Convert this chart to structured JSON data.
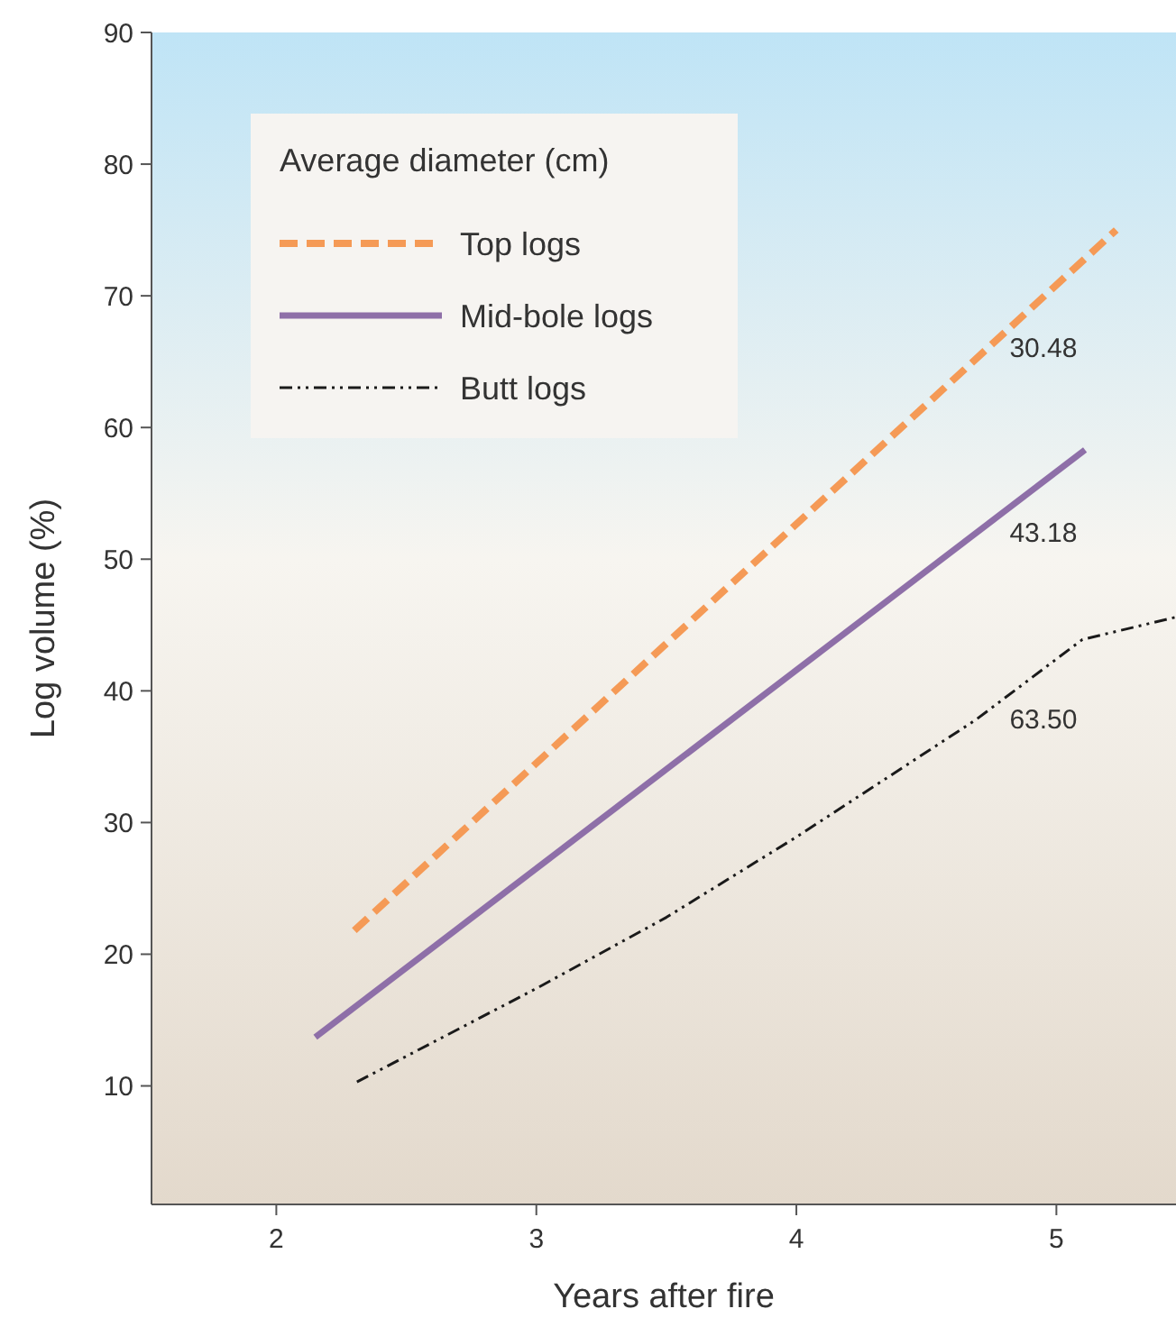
{
  "chart_data": {
    "type": "line",
    "xlabel": "Years after fire",
    "ylabel": "Log volume (%)",
    "legend_title": "Average diameter (cm)",
    "legend": "top left",
    "grid": false,
    "xlim": [
      1.52,
      5.46
    ],
    "xticks": [
      2,
      3,
      4,
      5
    ],
    "ylim": [
      1,
      90
    ],
    "yticks": [
      10,
      20,
      30,
      40,
      50,
      60,
      70,
      80,
      90
    ],
    "series": [
      {
        "name": "Top logs",
        "color": "#f59a56",
        "line_style": "dashed",
        "x": [
          2.3,
          5.23
        ],
        "values": [
          21.8,
          75
        ]
      },
      {
        "name": "Mid-bole logs",
        "color": "#8e6fa8",
        "line_style": "solid",
        "x": [
          2.15,
          5.11
        ],
        "values": [
          13.7,
          58.3
        ]
      },
      {
        "name": "Butt logs",
        "color": "#1a1a1a",
        "line_style": "dotted",
        "x": [
          2.31,
          3,
          3.5,
          4,
          4.69,
          5.1,
          5.46
        ],
        "values": [
          10.3,
          17.4,
          22.8,
          28.9,
          37.8,
          43.9,
          45.6
        ]
      }
    ],
    "annotations": [
      "30.48",
      "43.18",
      "63.50"
    ]
  }
}
